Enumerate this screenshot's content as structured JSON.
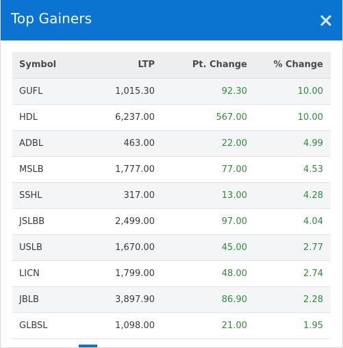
{
  "modal": {
    "title": "Top Gainers",
    "close_icon": "close-icon",
    "accent_color": "#0b74d1",
    "gain_color": "#2f8a3a"
  },
  "table": {
    "headers": [
      "Symbol",
      "LTP",
      "Pt. Change",
      "% Change"
    ],
    "rows": [
      {
        "symbol": "GUFL",
        "ltp": "1,015.30",
        "pt": "92.30",
        "pct": "10.00"
      },
      {
        "symbol": "HDL",
        "ltp": "6,237.00",
        "pt": "567.00",
        "pct": "10.00"
      },
      {
        "symbol": "ADBL",
        "ltp": "463.00",
        "pt": "22.00",
        "pct": "4.99"
      },
      {
        "symbol": "MSLB",
        "ltp": "1,777.00",
        "pt": "77.00",
        "pct": "4.53"
      },
      {
        "symbol": "SSHL",
        "ltp": "317.00",
        "pt": "13.00",
        "pct": "4.28"
      },
      {
        "symbol": "JSLBB",
        "ltp": "2,499.00",
        "pt": "97.00",
        "pct": "4.04"
      },
      {
        "symbol": "USLB",
        "ltp": "1,670.00",
        "pt": "45.00",
        "pct": "2.77"
      },
      {
        "symbol": "LICN",
        "ltp": "1,799.00",
        "pt": "48.00",
        "pct": "2.74"
      },
      {
        "symbol": "JBLB",
        "ltp": "3,897.90",
        "pt": "86.90",
        "pct": "2.28"
      },
      {
        "symbol": "GLBSL",
        "ltp": "1,098.00",
        "pt": "21.00",
        "pct": "1.95"
      }
    ]
  }
}
